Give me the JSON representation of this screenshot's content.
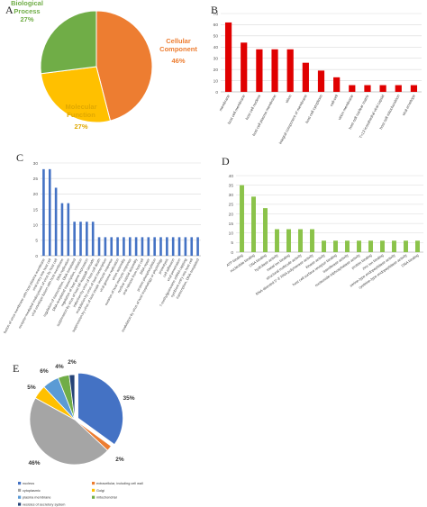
{
  "panels": {
    "A": "A",
    "B": "B",
    "C": "C",
    "D": "D",
    "E": "E"
  },
  "chart_data": [
    {
      "panel": "A",
      "type": "pie",
      "labels": [
        "Cellular Component",
        "Molecular Function",
        "Biological Process"
      ],
      "values": [
        46,
        27,
        27
      ],
      "value_labels": [
        "46%",
        "27%",
        "27%"
      ],
      "colors": [
        "#ED7D31",
        "#FFC000",
        "#70AD47"
      ],
      "start": "top, clockwise"
    },
    {
      "panel": "B",
      "type": "bar",
      "color": "#E00000",
      "ylim": [
        0,
        70
      ],
      "yticks": [
        0,
        10,
        20,
        30,
        40,
        50,
        60,
        70
      ],
      "grid": true,
      "categories": [
        "membrane",
        "host cell membrane",
        "host cell nucleus",
        "host cell plasma membrane",
        "virion",
        "integral component of membrane",
        "host cell cytoplasm",
        "cell-cell",
        "virion membrane",
        "host cell nuclear matrix",
        "T=13 icosahedral viral capsid",
        "host cell mitochondrion",
        "viral envelope"
      ],
      "values": [
        62,
        44,
        38,
        38,
        38,
        26,
        19,
        13,
        6,
        6,
        6,
        6,
        6
      ]
    },
    {
      "panel": "C",
      "type": "bar",
      "color": "#4472C4",
      "ylim": [
        0,
        30
      ],
      "yticks": [
        0,
        5,
        10,
        15,
        20,
        25,
        30
      ],
      "grid": true,
      "categories": [
        "fusion of virus membrane with host plasma membrane",
        "viral entry into host cell",
        "receptor-mediated endocytosis of virus by host cell",
        "viral envelope fusion with host membrane",
        "DNA replication",
        "regulation of transcription, DNA-templated",
        "DNA-templated transcription, initiation",
        "regulation of host gene expression",
        "suppression by virus of host NF-kappaB cascade",
        "induction by virus of host cell death",
        "modulation by virus of host transcription",
        "suppression by virus of host innate immune response",
        "viral genome replication",
        "virion assembly",
        "evasion of host immune response",
        "nuclear capsid assembly",
        "viral release from host cell",
        "DNA repair",
        "protein phosphorylation",
        "modulation by virus of host morphology or physiology",
        "proteolysis",
        "cell adhesion",
        "viral penetration",
        "7-methylguanosine mRNA capping",
        "symbiont entry into host cell",
        "transcription, DNA-templated"
      ],
      "values": [
        28,
        28,
        22,
        17,
        17,
        11,
        11,
        11,
        11,
        6,
        6,
        6,
        6,
        6,
        6,
        6,
        6,
        6,
        6,
        6,
        6,
        6,
        6,
        6,
        6,
        6
      ]
    },
    {
      "panel": "D",
      "type": "bar",
      "color": "#8BC34A",
      "ylim": [
        0,
        40
      ],
      "yticks": [
        0,
        5,
        10,
        15,
        20,
        25,
        30,
        35,
        40
      ],
      "grid": true,
      "categories": [
        "ATP binding",
        "nucleotide binding",
        "DNA binding",
        "hydrolase activity",
        "metal ion binding",
        "structural molecule activity",
        "RNA-directed 5'-3' RNA polymerase activity",
        "kinase activity",
        "host cell surface receptor binding",
        "transferase activity",
        "nucleoside-triphosphatase activity",
        "protein binding",
        "zinc ion binding",
        "serine-type endopeptidase activity",
        "cysteine-type endopeptidase activity",
        "DNA binding"
      ],
      "values": [
        35,
        29,
        23,
        12,
        12,
        12,
        12,
        6,
        6,
        6,
        6,
        6,
        6,
        6,
        6,
        6
      ]
    },
    {
      "panel": "E",
      "type": "pie",
      "legend": [
        "nucleus",
        "extracellular, including cell wall",
        "cytoplasmic",
        "Golgi",
        "plasma membrane",
        "mitochondrial",
        "vesicles of secretory system"
      ],
      "labels": [
        "nucleus",
        "extracellular, including cell wall",
        "cytoplasmic",
        "Golgi",
        "plasma membrane",
        "mitochondrial",
        "vesicles of secretory system"
      ],
      "values": [
        35,
        2,
        46,
        5,
        6,
        4,
        2
      ],
      "value_labels": [
        "35%",
        "2%",
        "46%",
        "5%",
        "6%",
        "4%",
        "2%"
      ],
      "colors": [
        "#4472C4",
        "#ED7D31",
        "#A5A5A5",
        "#FFC000",
        "#5B9BD5",
        "#70AD47",
        "#264478"
      ],
      "exploded": "nucleus",
      "legend_position": "bottom"
    }
  ]
}
